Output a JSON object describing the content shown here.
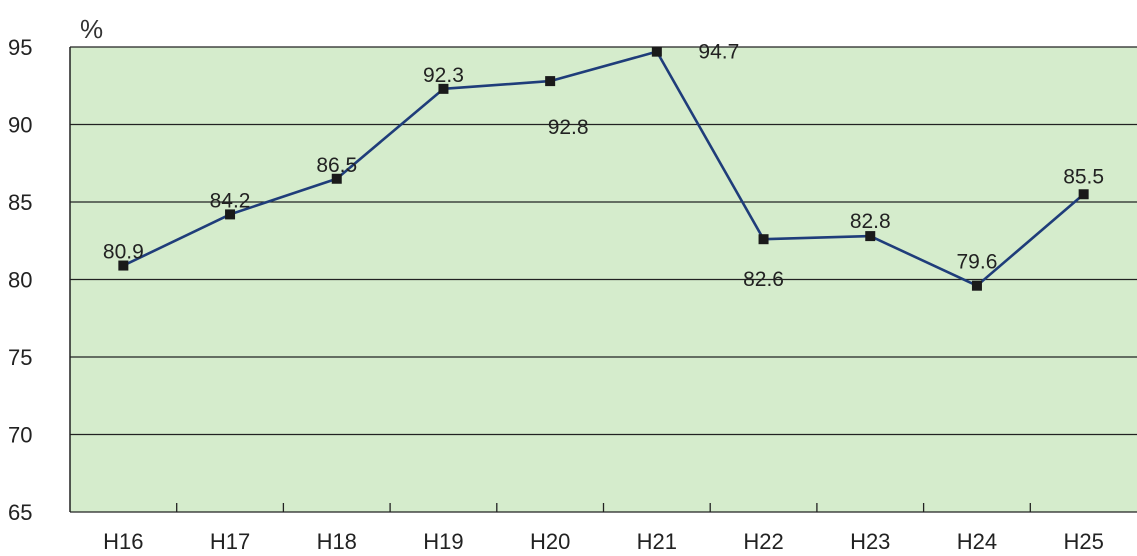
{
  "chart_data": {
    "type": "line",
    "unit": "%",
    "categories": [
      "H16",
      "H17",
      "H18",
      "H19",
      "H20",
      "H21",
      "H22",
      "H23",
      "H24",
      "H25"
    ],
    "series": [
      {
        "values": [
          80.9,
          84.2,
          86.5,
          92.3,
          92.8,
          94.7,
          82.6,
          82.8,
          79.6,
          85.5
        ]
      }
    ],
    "data_labels": [
      "80.9",
      "84.2",
      "86.5",
      "92.3",
      "92.8",
      "94.7",
      "82.6",
      "82.8",
      "79.6",
      "85.5"
    ],
    "ylim": [
      65,
      95
    ],
    "yticks": [
      95,
      90,
      85,
      80,
      75,
      70,
      65
    ],
    "grid": true,
    "colors": {
      "plot_background": "#d5eccc",
      "line": "#1f3d7a",
      "marker": "#1a1a1a",
      "grid": "#222222"
    }
  }
}
